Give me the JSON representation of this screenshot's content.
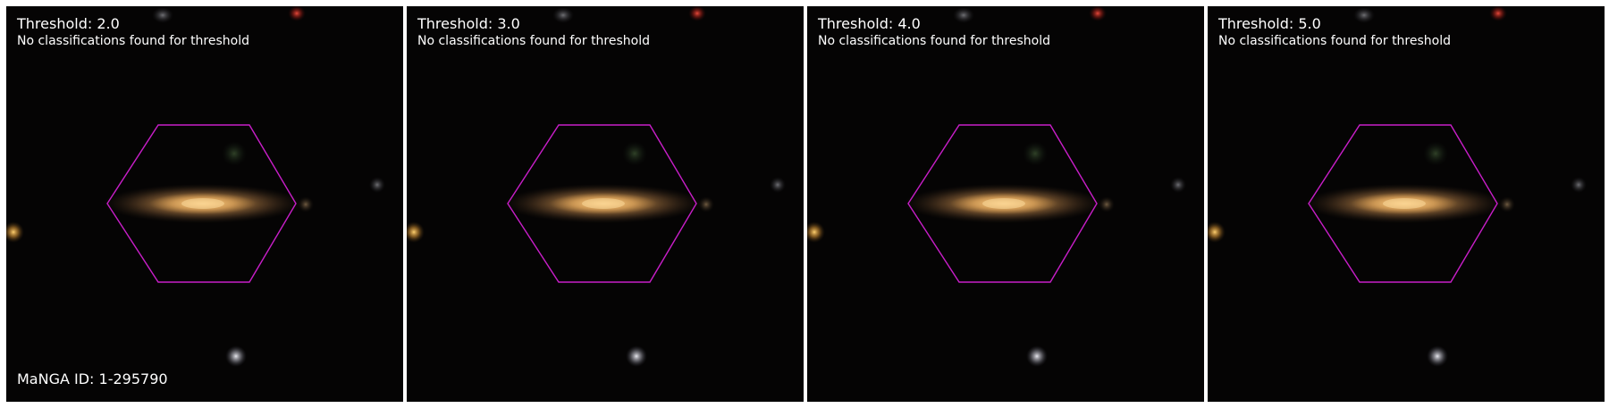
{
  "panels": [
    {
      "title": "Threshold: 2.0",
      "status": "No classifications found for threshold"
    },
    {
      "title": "Threshold: 3.0",
      "status": "No classifications found for threshold"
    },
    {
      "title": "Threshold: 4.0",
      "status": "No classifications found for threshold"
    },
    {
      "title": "Threshold: 5.0",
      "status": "No classifications found for threshold"
    }
  ],
  "manga_id": "MaNGA ID: 1-295790",
  "colors": {
    "sky_background": "#050404",
    "hexagon_outline": "#c81ec8",
    "galaxy_core": "#e0a050"
  }
}
